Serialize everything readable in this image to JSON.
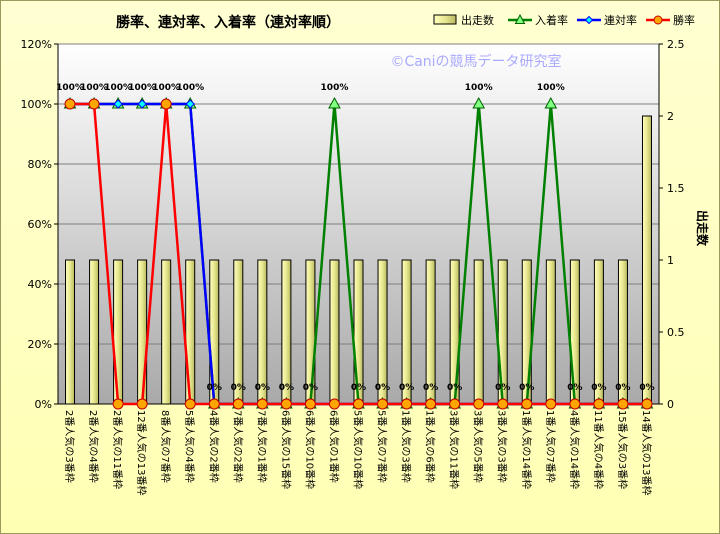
{
  "chart_data": {
    "type": "bar",
    "title": "勝率、連対率、入着率（連対率順）",
    "watermark": "©Caniの競馬データ研究室",
    "categories": [
      "2番人気の3番枠",
      "2番人気の4番枠",
      "2番人気の11番枠",
      "12番人気の13番枠",
      "8番人気の7番枠",
      "5番人気の4番枠",
      "4番人気の2番枠",
      "7番人気の2番枠",
      "7番人気の1番枠",
      "6番人気の15番枠",
      "6番人気の10番枠",
      "6番人気の1番枠",
      "5番人気の10番枠",
      "5番人気の7番枠",
      "1番人気の3番枠",
      "1番人気の6番枠",
      "3番人気の11番枠",
      "3番人気の5番枠",
      "3番人気の3番枠",
      "1番人気の14番枠",
      "1番人気の7番枠",
      "4番人気の14番枠",
      "11番人気の4番枠",
      "15番人気の3番枠",
      "14番人気の13番枠"
    ],
    "y_left": {
      "min": 0,
      "max": 120,
      "step": 20,
      "ticks": [
        "0%",
        "20%",
        "40%",
        "60%",
        "80%",
        "100%",
        "120%"
      ]
    },
    "y_right": {
      "min": 0,
      "max": 2.5,
      "step": 0.5,
      "ticks": [
        "0",
        "0.5",
        "1",
        "1.5",
        "2",
        "2.5"
      ],
      "label": "出走数"
    },
    "series": [
      {
        "name": "出走数",
        "kind": "bar",
        "axis": "right",
        "color": "#ecec98",
        "values": [
          1,
          1,
          1,
          1,
          1,
          1,
          1,
          1,
          1,
          1,
          1,
          1,
          1,
          1,
          1,
          1,
          1,
          1,
          1,
          1,
          1,
          1,
          1,
          1,
          2
        ]
      },
      {
        "name": "入着率",
        "kind": "line",
        "axis": "left",
        "color": "#008000",
        "marker": "triangle",
        "values": [
          100,
          100,
          100,
          100,
          100,
          100,
          0,
          0,
          0,
          0,
          0,
          100,
          0,
          0,
          0,
          0,
          0,
          100,
          0,
          0,
          100,
          0,
          0,
          0,
          0
        ]
      },
      {
        "name": "連対率",
        "kind": "line",
        "axis": "left",
        "color": "#0000ff",
        "marker": "diamond",
        "values": [
          100,
          100,
          100,
          100,
          100,
          100,
          0,
          0,
          0,
          0,
          0,
          0,
          0,
          0,
          0,
          0,
          0,
          0,
          0,
          0,
          0,
          0,
          0,
          0,
          0
        ]
      },
      {
        "name": "勝率",
        "kind": "line",
        "axis": "left",
        "color": "#ff0000",
        "marker": "circle",
        "values": [
          100,
          100,
          0,
          0,
          100,
          0,
          0,
          0,
          0,
          0,
          0,
          0,
          0,
          0,
          0,
          0,
          0,
          0,
          0,
          0,
          0,
          0,
          0,
          0,
          0
        ]
      }
    ],
    "data_labels": [
      "100%",
      "100%",
      "100%",
      "100%",
      "100%",
      "100%",
      "0%",
      "0%",
      "0%",
      "0%",
      "0%",
      "100%",
      "0%",
      "0%",
      "0%",
      "0%",
      "0%",
      "100%",
      "0%",
      "0%",
      "100%",
      "0%",
      "0%",
      "0%",
      "0%"
    ],
    "legend_position": "top-right",
    "grid": true
  }
}
